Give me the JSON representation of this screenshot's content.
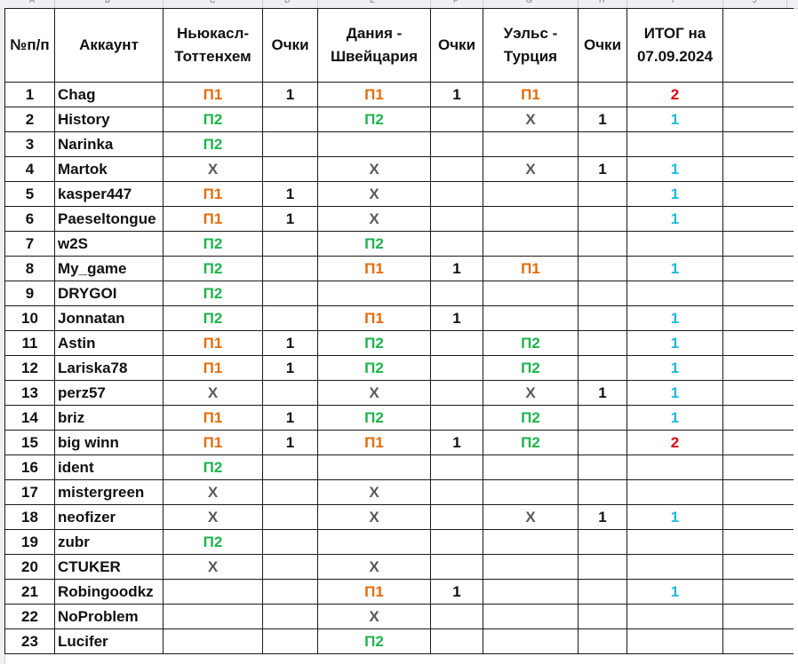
{
  "column_letters": [
    "A",
    "B",
    "C",
    "D",
    "E",
    "F",
    "G",
    "H",
    "I",
    "J"
  ],
  "header": {
    "num": "№п/п",
    "account": "Аккаунт",
    "match1": "Ньюкасл-Тоттенхем",
    "points1": "Очки",
    "match2": "Дания - Швейцария",
    "points2": "Очки",
    "match3": "Уэльс - Турция",
    "points3": "Очки",
    "total": "ИТОГ на 07.09.2024"
  },
  "colors": {
    "match1_header": "#4bacc6",
    "match2_header": "#943634",
    "match3_header": "#e3000f",
    "total_header": "#1db34d",
    "P1": "#e46c0a",
    "P2": "#1db34d",
    "X": "#595959",
    "total_2": "#e3000f",
    "total_1": "#1eb9dc"
  },
  "rows": [
    {
      "num": "1",
      "account": "Chag",
      "m1": "П1",
      "p1": "1",
      "m2": "П1",
      "p2": "1",
      "m3": "П1",
      "p3": "",
      "total": "2"
    },
    {
      "num": "2",
      "account": "History",
      "m1": "П2",
      "p1": "",
      "m2": "П2",
      "p2": "",
      "m3": "Х",
      "p3": "1",
      "total": "1"
    },
    {
      "num": "3",
      "account": "Narinka",
      "m1": "П2",
      "p1": "",
      "m2": "",
      "p2": "",
      "m3": "",
      "p3": "",
      "total": ""
    },
    {
      "num": "4",
      "account": "Martok",
      "m1": "Х",
      "p1": "",
      "m2": "Х",
      "p2": "",
      "m3": "Х",
      "p3": "1",
      "total": "1"
    },
    {
      "num": "5",
      "account": "kasper447",
      "m1": "П1",
      "p1": "1",
      "m2": "Х",
      "p2": "",
      "m3": "",
      "p3": "",
      "total": "1"
    },
    {
      "num": "6",
      "account": "Paeseltongue",
      "m1": "П1",
      "p1": "1",
      "m2": "Х",
      "p2": "",
      "m3": "",
      "p3": "",
      "total": "1"
    },
    {
      "num": "7",
      "account": "w2S",
      "m1": "П2",
      "p1": "",
      "m2": "П2",
      "p2": "",
      "m3": "",
      "p3": "",
      "total": ""
    },
    {
      "num": "8",
      "account": "My_game",
      "m1": "П2",
      "p1": "",
      "m2": "П1",
      "p2": "1",
      "m3": "П1",
      "p3": "",
      "total": "1"
    },
    {
      "num": "9",
      "account": "DRYGOI",
      "m1": "П2",
      "p1": "",
      "m2": "",
      "p2": "",
      "m3": "",
      "p3": "",
      "total": ""
    },
    {
      "num": "10",
      "account": "Jonnatan",
      "m1": "П2",
      "p1": "",
      "m2": "П1",
      "p2": "1",
      "m3": "",
      "p3": "",
      "total": "1"
    },
    {
      "num": "11",
      "account": "Astin",
      "m1": "П1",
      "p1": "1",
      "m2": "П2",
      "p2": "",
      "m3": "П2",
      "p3": "",
      "total": "1"
    },
    {
      "num": "12",
      "account": "Lariska78",
      "m1": "П1",
      "p1": "1",
      "m2": "П2",
      "p2": "",
      "m3": "П2",
      "p3": "",
      "total": "1"
    },
    {
      "num": "13",
      "account": "perz57",
      "m1": "Х",
      "p1": "",
      "m2": "Х",
      "p2": "",
      "m3": "Х",
      "p3": "1",
      "total": "1"
    },
    {
      "num": "14",
      "account": "briz",
      "m1": "П1",
      "p1": "1",
      "m2": "П2",
      "p2": "",
      "m3": "П2",
      "p3": "",
      "total": "1"
    },
    {
      "num": "15",
      "account": "big winn",
      "m1": "П1",
      "p1": "1",
      "m2": "П1",
      "p2": "1",
      "m3": "П2",
      "p3": "",
      "total": "2"
    },
    {
      "num": "16",
      "account": "ident",
      "m1": "П2",
      "p1": "",
      "m2": "",
      "p2": "",
      "m3": "",
      "p3": "",
      "total": ""
    },
    {
      "num": "17",
      "account": "mistergreen",
      "m1": "Х",
      "p1": "",
      "m2": "Х",
      "p2": "",
      "m3": "",
      "p3": "",
      "total": ""
    },
    {
      "num": "18",
      "account": "neofizer",
      "m1": "Х",
      "p1": "",
      "m2": "Х",
      "p2": "",
      "m3": "Х",
      "p3": "1",
      "total": "1"
    },
    {
      "num": "19",
      "account": "zubr",
      "m1": "П2",
      "p1": "",
      "m2": "",
      "p2": "",
      "m3": "",
      "p3": "",
      "total": ""
    },
    {
      "num": "20",
      "account": "CTUKER",
      "m1": "Х",
      "p1": "",
      "m2": "Х",
      "p2": "",
      "m3": "",
      "p3": "",
      "total": ""
    },
    {
      "num": "21",
      "account": "Robingoodkz",
      "m1": "",
      "p1": "",
      "m2": "П1",
      "p2": "1",
      "m3": "",
      "p3": "",
      "total": "1"
    },
    {
      "num": "22",
      "account": "NoProblem",
      "m1": "",
      "p1": "",
      "m2": "Х",
      "p2": "",
      "m3": "",
      "p3": "",
      "total": ""
    },
    {
      "num": "23",
      "account": "Lucifer",
      "m1": "",
      "p1": "",
      "m2": "П2",
      "p2": "",
      "m3": "",
      "p3": "",
      "total": ""
    }
  ]
}
